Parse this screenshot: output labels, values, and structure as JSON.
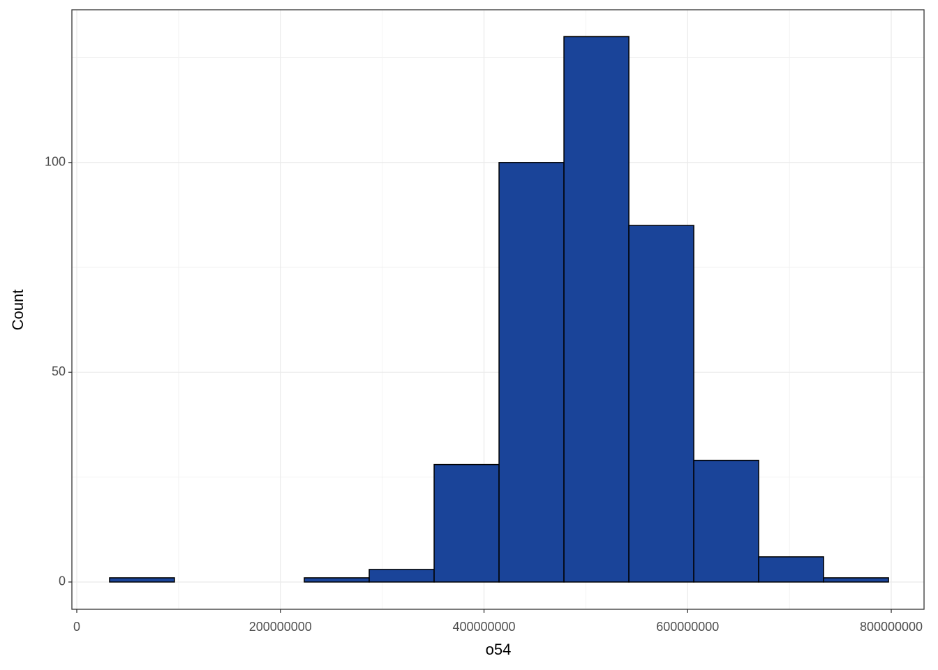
{
  "chart_data": {
    "type": "histogram",
    "x_label": "o54",
    "y_label": "Count",
    "bins": [
      32200000,
      95960000,
      159720000,
      223480000,
      287240000,
      351000000,
      414760000,
      478520000,
      542280000,
      606040000,
      669800000,
      733560000,
      797320000
    ],
    "values": [
      1,
      0,
      0,
      1,
      3,
      28,
      100,
      130,
      85,
      29,
      6,
      1
    ],
    "color": "#1a4499",
    "edge_color": "#000000",
    "xlim": [
      -4800000,
      832200000
    ],
    "xticks": [
      0,
      200000000,
      400000000,
      600000000,
      800000000
    ],
    "minor_xticks": [
      100000000,
      300000000,
      500000000,
      700000000
    ],
    "ylim": [
      -6.5,
      136.4
    ],
    "yticks": [
      0,
      50,
      100
    ],
    "minor_yticks": [
      25,
      75,
      125
    ],
    "grid": true
  }
}
